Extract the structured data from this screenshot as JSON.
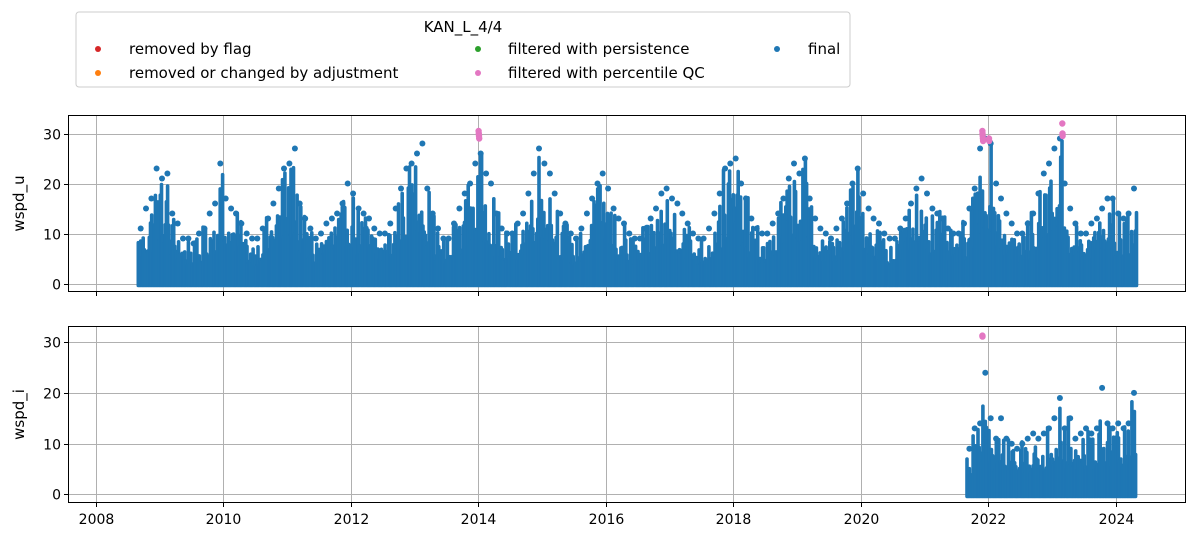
{
  "chart_data": {
    "type": "scatter",
    "legend": {
      "title": "KAN_L_4/4",
      "placement": "top-left, above plots",
      "entries": [
        {
          "label": "removed by flag",
          "color": "#d62728"
        },
        {
          "label": "removed or changed by adjustment",
          "color": "#ff7f0e"
        },
        {
          "label": "filtered with persistence",
          "color": "#2ca02c"
        },
        {
          "label": "filtered with percentile QC",
          "color": "#e377c2"
        },
        {
          "label": "final",
          "color": "#1f77b4"
        }
      ]
    },
    "x_axis": {
      "type": "date",
      "range": [
        "2007-08-01",
        "2025-02-01"
      ],
      "ticks": [
        "2008",
        "2010",
        "2012",
        "2014",
        "2016",
        "2018",
        "2020",
        "2022",
        "2024"
      ],
      "grid": true
    },
    "panels": [
      {
        "ylabel": "wspd_u",
        "ylim": [
          -1.5,
          33.5
        ],
        "yticks": [
          0,
          10,
          20,
          30
        ],
        "grid": true,
        "final_series": {
          "color": "#1f77b4",
          "x_range": [
            "2008-08-20",
            "2024-04-30"
          ],
          "y_min": 0,
          "monthly_peaks": [
            [
              "2008-09",
              11
            ],
            [
              "2008-10",
              15
            ],
            [
              "2008-11",
              17
            ],
            [
              "2008-12",
              23
            ],
            [
              "2009-01",
              21
            ],
            [
              "2009-02",
              22
            ],
            [
              "2009-03",
              14
            ],
            [
              "2009-04",
              12
            ],
            [
              "2009-05",
              9
            ],
            [
              "2009-06",
              9
            ],
            [
              "2009-07",
              8
            ],
            [
              "2009-08",
              10
            ],
            [
              "2009-09",
              11
            ],
            [
              "2009-10",
              14
            ],
            [
              "2009-11",
              16
            ],
            [
              "2009-12",
              24
            ],
            [
              "2010-01",
              17
            ],
            [
              "2010-02",
              15
            ],
            [
              "2010-03",
              14
            ],
            [
              "2010-04",
              12
            ],
            [
              "2010-05",
              10
            ],
            [
              "2010-06",
              9
            ],
            [
              "2010-07",
              9
            ],
            [
              "2010-08",
              11
            ],
            [
              "2010-09",
              13
            ],
            [
              "2010-10",
              16
            ],
            [
              "2010-11",
              19
            ],
            [
              "2010-12",
              23
            ],
            [
              "2011-01",
              24
            ],
            [
              "2011-02",
              27
            ],
            [
              "2011-03",
              16
            ],
            [
              "2011-04",
              13
            ],
            [
              "2011-05",
              11
            ],
            [
              "2011-06",
              9
            ],
            [
              "2011-07",
              10
            ],
            [
              "2011-08",
              12
            ],
            [
              "2011-09",
              13
            ],
            [
              "2011-10",
              14
            ],
            [
              "2011-11",
              16
            ],
            [
              "2011-12",
              20
            ],
            [
              "2012-01",
              18
            ],
            [
              "2012-02",
              15
            ],
            [
              "2012-03",
              14
            ],
            [
              "2012-04",
              13
            ],
            [
              "2012-05",
              11
            ],
            [
              "2012-06",
              10
            ],
            [
              "2012-07",
              10
            ],
            [
              "2012-08",
              12
            ],
            [
              "2012-09",
              15
            ],
            [
              "2012-10",
              19
            ],
            [
              "2012-11",
              23
            ],
            [
              "2012-12",
              24
            ],
            [
              "2013-01",
              26
            ],
            [
              "2013-02",
              28
            ],
            [
              "2013-03",
              19
            ],
            [
              "2013-04",
              14
            ],
            [
              "2013-05",
              11
            ],
            [
              "2013-06",
              9
            ],
            [
              "2013-07",
              9
            ],
            [
              "2013-08",
              12
            ],
            [
              "2013-09",
              15
            ],
            [
              "2013-10",
              18
            ],
            [
              "2013-11",
              20
            ],
            [
              "2013-12",
              24
            ],
            [
              "2014-01",
              26
            ],
            [
              "2014-02",
              22
            ],
            [
              "2014-03",
              20
            ],
            [
              "2014-04",
              14
            ],
            [
              "2014-05",
              11
            ],
            [
              "2014-06",
              10
            ],
            [
              "2014-07",
              10
            ],
            [
              "2014-08",
              12
            ],
            [
              "2014-09",
              14
            ],
            [
              "2014-10",
              18
            ],
            [
              "2014-11",
              22
            ],
            [
              "2014-12",
              27
            ],
            [
              "2015-01",
              24
            ],
            [
              "2015-02",
              22
            ],
            [
              "2015-03",
              18
            ],
            [
              "2015-04",
              14
            ],
            [
              "2015-05",
              12
            ],
            [
              "2015-06",
              10
            ],
            [
              "2015-07",
              9
            ],
            [
              "2015-08",
              11
            ],
            [
              "2015-09",
              14
            ],
            [
              "2015-10",
              17
            ],
            [
              "2015-11",
              20
            ],
            [
              "2015-12",
              22
            ],
            [
              "2016-01",
              19
            ],
            [
              "2016-02",
              15
            ],
            [
              "2016-03",
              13
            ],
            [
              "2016-04",
              12
            ],
            [
              "2016-05",
              10
            ],
            [
              "2016-06",
              9
            ],
            [
              "2016-07",
              9
            ],
            [
              "2016-08",
              11
            ],
            [
              "2016-09",
              13
            ],
            [
              "2016-10",
              15
            ],
            [
              "2016-11",
              18
            ],
            [
              "2016-12",
              19
            ],
            [
              "2017-01",
              17
            ],
            [
              "2017-02",
              16
            ],
            [
              "2017-03",
              14
            ],
            [
              "2017-04",
              12
            ],
            [
              "2017-05",
              10
            ],
            [
              "2017-06",
              9
            ],
            [
              "2017-07",
              9
            ],
            [
              "2017-08",
              11
            ],
            [
              "2017-09",
              14
            ],
            [
              "2017-10",
              18
            ],
            [
              "2017-11",
              23
            ],
            [
              "2017-12",
              24
            ],
            [
              "2018-01",
              25
            ],
            [
              "2018-02",
              20
            ],
            [
              "2018-03",
              17
            ],
            [
              "2018-04",
              13
            ],
            [
              "2018-05",
              11
            ],
            [
              "2018-06",
              10
            ],
            [
              "2018-07",
              10
            ],
            [
              "2018-08",
              12
            ],
            [
              "2018-09",
              14
            ],
            [
              "2018-10",
              17
            ],
            [
              "2018-11",
              21
            ],
            [
              "2018-12",
              24
            ],
            [
              "2019-01",
              22
            ],
            [
              "2019-02",
              25
            ],
            [
              "2019-03",
              17
            ],
            [
              "2019-04",
              13
            ],
            [
              "2019-05",
              11
            ],
            [
              "2019-06",
              10
            ],
            [
              "2019-07",
              9
            ],
            [
              "2019-08",
              11
            ],
            [
              "2019-09",
              13
            ],
            [
              "2019-10",
              16
            ],
            [
              "2019-11",
              20
            ],
            [
              "2019-12",
              23
            ],
            [
              "2020-01",
              18
            ],
            [
              "2020-02",
              15
            ],
            [
              "2020-03",
              13
            ],
            [
              "2020-04",
              12
            ],
            [
              "2020-05",
              10
            ],
            [
              "2020-06",
              9
            ],
            [
              "2020-07",
              9
            ],
            [
              "2020-08",
              11
            ],
            [
              "2020-09",
              13
            ],
            [
              "2020-10",
              16
            ],
            [
              "2020-11",
              19
            ],
            [
              "2020-12",
              21
            ],
            [
              "2021-01",
              18
            ],
            [
              "2021-02",
              15
            ],
            [
              "2021-03",
              14
            ],
            [
              "2021-04",
              13
            ],
            [
              "2021-05",
              11
            ],
            [
              "2021-06",
              10
            ],
            [
              "2021-07",
              10
            ],
            [
              "2021-08",
              12
            ],
            [
              "2021-09",
              15
            ],
            [
              "2021-10",
              19
            ],
            [
              "2021-11",
              27
            ],
            [
              "2021-12",
              29
            ],
            [
              "2022-01",
              28
            ],
            [
              "2022-02",
              20
            ],
            [
              "2022-03",
              17
            ],
            [
              "2022-04",
              14
            ],
            [
              "2022-05",
              12
            ],
            [
              "2022-06",
              10
            ],
            [
              "2022-07",
              10
            ],
            [
              "2022-08",
              12
            ],
            [
              "2022-09",
              14
            ],
            [
              "2022-10",
              18
            ],
            [
              "2022-11",
              22
            ],
            [
              "2022-12",
              24
            ],
            [
              "2023-01",
              27
            ],
            [
              "2023-02",
              29
            ],
            [
              "2023-03",
              20
            ],
            [
              "2023-04",
              15
            ],
            [
              "2023-05",
              12
            ],
            [
              "2023-06",
              10
            ],
            [
              "2023-07",
              10
            ],
            [
              "2023-08",
              12
            ],
            [
              "2023-09",
              13
            ],
            [
              "2023-10",
              15
            ],
            [
              "2023-11",
              17
            ],
            [
              "2023-12",
              17
            ],
            [
              "2024-01",
              14
            ],
            [
              "2024-02",
              13
            ],
            [
              "2024-03",
              14
            ],
            [
              "2024-04",
              19
            ]
          ]
        },
        "percentile_qc_points": [
          [
            "2014-01-03",
            30.5
          ],
          [
            "2014-01-04",
            30.0
          ],
          [
            "2014-01-05",
            29.5
          ],
          [
            "2014-01-06",
            29.0
          ],
          [
            "2021-11-28",
            30.5
          ],
          [
            "2021-11-29",
            30.0
          ],
          [
            "2021-11-30",
            29.5
          ],
          [
            "2021-12-01",
            29.0
          ],
          [
            "2021-12-02",
            28.5
          ],
          [
            "2022-01-05",
            29.0
          ],
          [
            "2022-01-06",
            28.5
          ],
          [
            "2023-03-01",
            32.0
          ],
          [
            "2023-03-02",
            30.0
          ],
          [
            "2023-03-03",
            29.5
          ]
        ]
      },
      {
        "ylabel": "wspd_i",
        "ylim": [
          -1.5,
          33
        ],
        "yticks": [
          0,
          10,
          20,
          30
        ],
        "grid": true,
        "final_series": {
          "color": "#1f77b4",
          "x_range": [
            "2021-08-20",
            "2024-04-30"
          ],
          "y_min": 0,
          "monthly_peaks": [
            [
              "2021-09",
              9
            ],
            [
              "2021-10",
              13
            ],
            [
              "2021-11",
              14
            ],
            [
              "2021-12",
              24
            ],
            [
              "2022-01",
              15
            ],
            [
              "2022-02",
              11
            ],
            [
              "2022-03",
              15
            ],
            [
              "2022-04",
              11
            ],
            [
              "2022-05",
              10
            ],
            [
              "2022-06",
              9
            ],
            [
              "2022-07",
              10
            ],
            [
              "2022-08",
              11
            ],
            [
              "2022-09",
              12
            ],
            [
              "2022-10",
              11
            ],
            [
              "2022-11",
              12
            ],
            [
              "2022-12",
              13
            ],
            [
              "2023-01",
              15
            ],
            [
              "2023-02",
              19
            ],
            [
              "2023-03",
              13
            ],
            [
              "2023-04",
              15
            ],
            [
              "2023-05",
              11
            ],
            [
              "2023-06",
              12
            ],
            [
              "2023-07",
              13
            ],
            [
              "2023-08",
              12
            ],
            [
              "2023-09",
              13
            ],
            [
              "2023-10",
              21
            ],
            [
              "2023-11",
              14
            ],
            [
              "2023-12",
              13
            ],
            [
              "2024-01",
              14
            ],
            [
              "2024-02",
              13
            ],
            [
              "2024-03",
              14
            ],
            [
              "2024-04",
              20
            ]
          ]
        },
        "percentile_qc_points": [
          [
            "2021-11-28",
            31.3
          ],
          [
            "2021-11-29",
            31.1
          ]
        ]
      }
    ]
  }
}
